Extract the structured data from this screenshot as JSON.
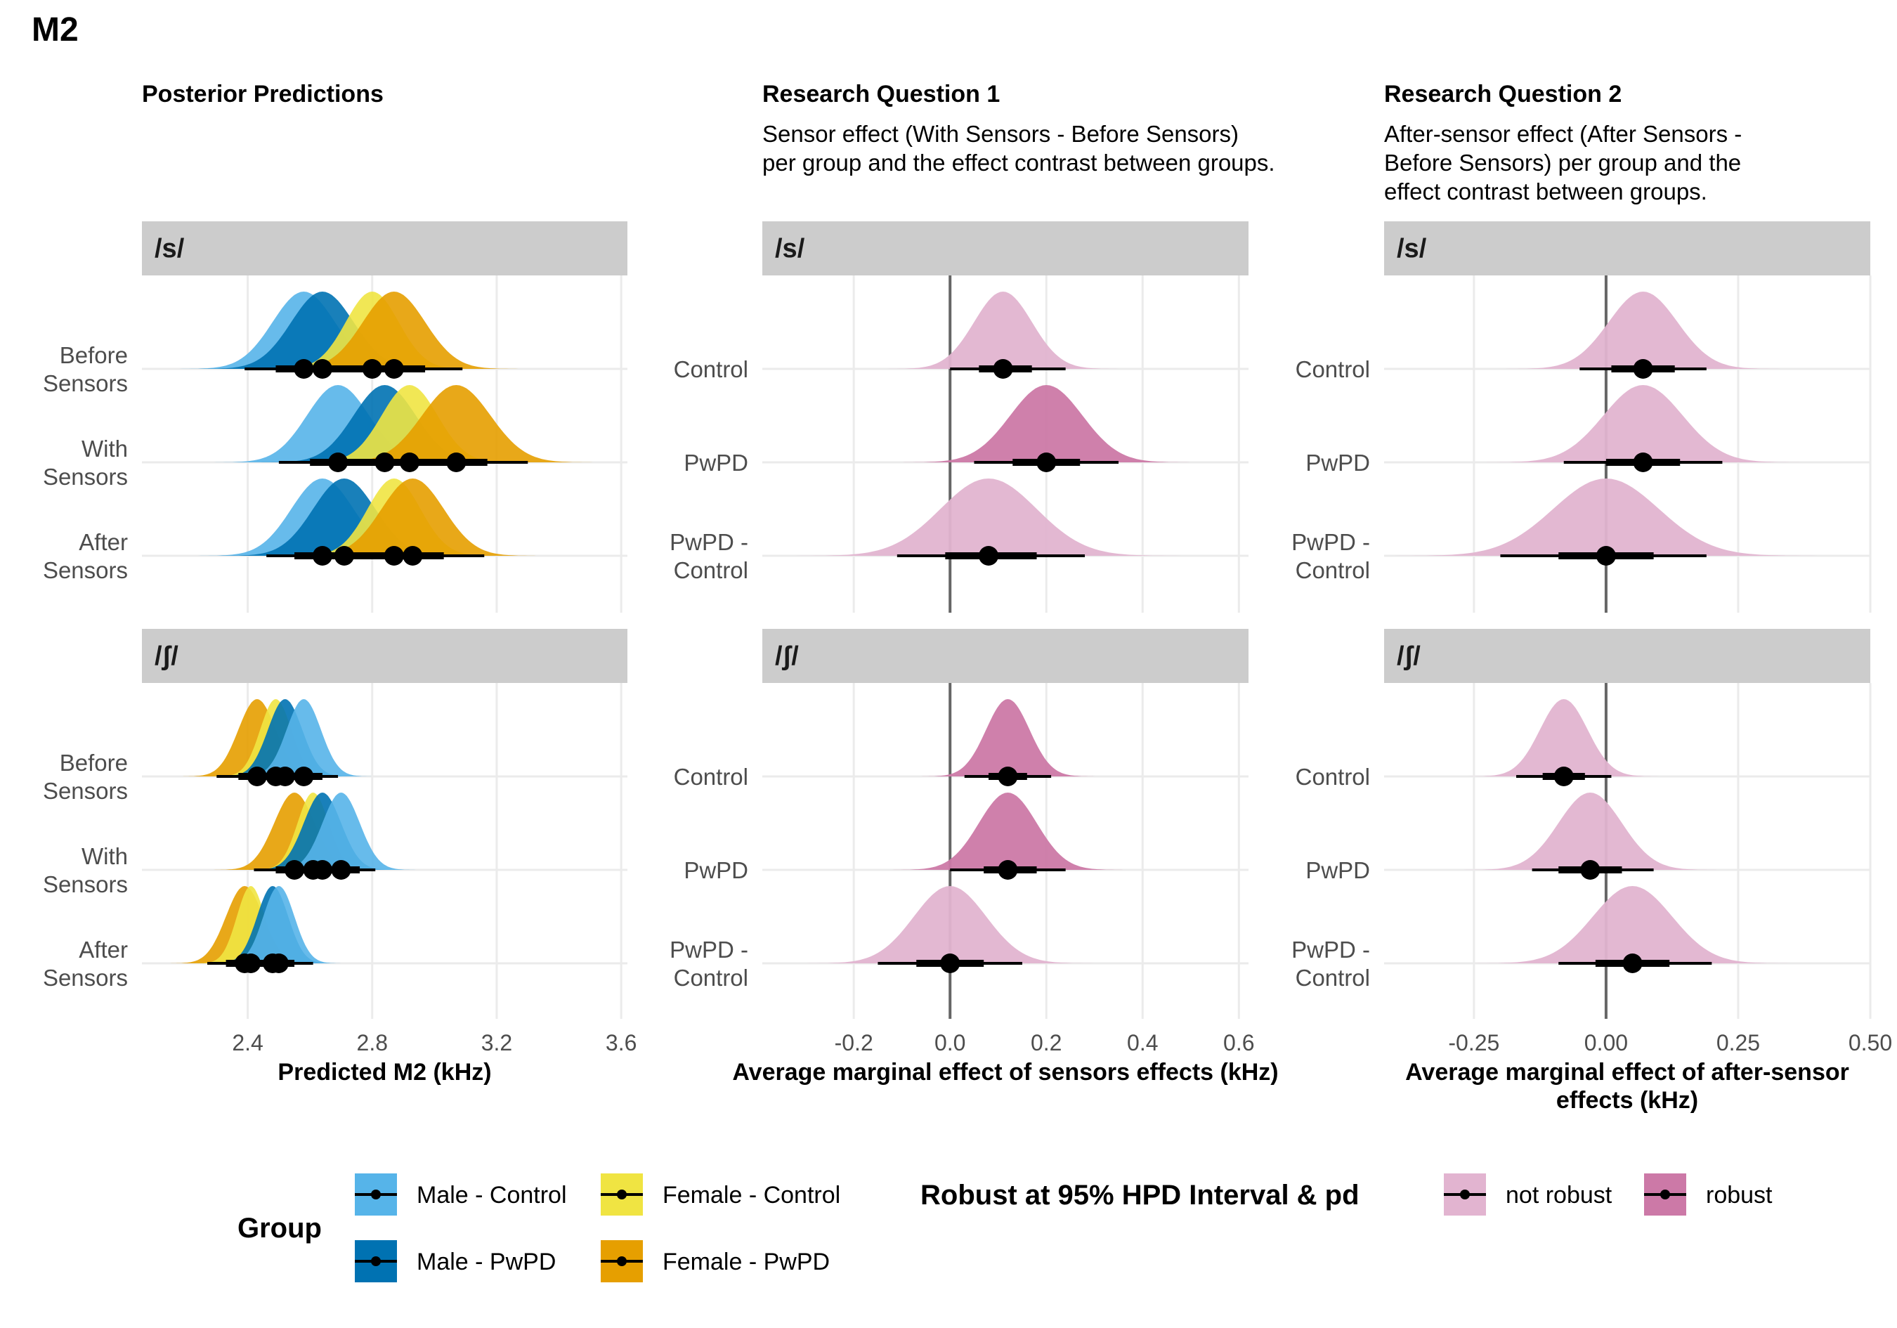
{
  "figure": {
    "title": "M2",
    "panel_titles": [
      "Posterior Predictions",
      "Research Question 1",
      "Research Question 2"
    ],
    "subtitles": [
      "",
      "Sensor effect (With Sensors - Before Sensors)\nper group and the effect contrast between groups.",
      "After-sensor effect (After Sensors -\nBefore Sensors) per group and the\neffect contrast between groups."
    ]
  },
  "colors": {
    "male_control": "#56B4E9",
    "male_pwpd": "#0072B2",
    "female_control": "#F0E442",
    "female_pwpd": "#E69F00",
    "not_robust": "#E2B4D0",
    "robust": "#CC79A7",
    "strip_bg": "#CCCCCC",
    "grid": "#EBEBEB"
  },
  "legend": {
    "group_title": "Group",
    "group_items": [
      "Male - Control",
      "Male - PwPD",
      "Female - Control",
      "Female - PwPD"
    ],
    "robust_title": "Robust at 95% HPD Interval & pd",
    "robust_items": [
      "not robust",
      "robust"
    ]
  },
  "chart_data": [
    {
      "type": "area",
      "subtype": "halfeye",
      "title": "Posterior Predictions",
      "xlabel": "Predicted M2 (kHz)",
      "xlim": [
        2.06,
        3.62
      ],
      "xticks": [
        2.4,
        2.8,
        3.2,
        3.6
      ],
      "xticklabels": [
        "2.4",
        "2.8",
        "3.2",
        "3.6"
      ],
      "facets": [
        "/s/",
        "/ʃ/"
      ],
      "rows": [
        "Before\nSensors",
        "With\nSensors",
        "After\nSensors"
      ],
      "series": [
        "Male - Control",
        "Male - PwPD",
        "Female - Control",
        "Female - PwPD"
      ],
      "data": {
        "/s/": {
          "Before\nSensors": [
            {
              "group": "Male - Control",
              "median": 2.58,
              "sd": 0.1,
              "lo66": 2.49,
              "hi66": 2.67,
              "lo95": 2.39,
              "hi95": 2.79
            },
            {
              "group": "Male - PwPD",
              "median": 2.64,
              "sd": 0.1,
              "lo66": 2.55,
              "hi66": 2.73,
              "lo95": 2.44,
              "hi95": 2.85
            },
            {
              "group": "Female - Control",
              "median": 2.8,
              "sd": 0.085,
              "lo66": 2.71,
              "hi66": 2.89,
              "lo95": 2.6,
              "hi95": 3.0
            },
            {
              "group": "Female - PwPD",
              "median": 2.87,
              "sd": 0.1,
              "lo66": 2.78,
              "hi66": 2.97,
              "lo95": 2.66,
              "hi95": 3.09
            }
          ],
          "With\nSensors": [
            {
              "group": "Male - Control",
              "median": 2.69,
              "sd": 0.1,
              "lo66": 2.6,
              "hi66": 2.79,
              "lo95": 2.5,
              "hi95": 2.9
            },
            {
              "group": "Male - PwPD",
              "median": 2.84,
              "sd": 0.1,
              "lo66": 2.75,
              "hi66": 2.94,
              "lo95": 2.63,
              "hi95": 3.04
            },
            {
              "group": "Female - Control",
              "median": 2.92,
              "sd": 0.09,
              "lo66": 2.83,
              "hi66": 3.01,
              "lo95": 2.73,
              "hi95": 3.12
            },
            {
              "group": "Female - PwPD",
              "median": 3.07,
              "sd": 0.11,
              "lo66": 2.96,
              "hi66": 3.17,
              "lo95": 2.86,
              "hi95": 3.3
            }
          ],
          "After\nSensors": [
            {
              "group": "Male - Control",
              "median": 2.64,
              "sd": 0.1,
              "lo66": 2.55,
              "hi66": 2.74,
              "lo95": 2.46,
              "hi95": 2.85
            },
            {
              "group": "Male - PwPD",
              "median": 2.71,
              "sd": 0.1,
              "lo66": 2.62,
              "hi66": 2.81,
              "lo95": 2.51,
              "hi95": 2.92
            },
            {
              "group": "Female - Control",
              "median": 2.87,
              "sd": 0.085,
              "lo66": 2.78,
              "hi66": 2.96,
              "lo95": 2.68,
              "hi95": 3.05
            },
            {
              "group": "Female - PwPD",
              "median": 2.93,
              "sd": 0.1,
              "lo66": 2.84,
              "hi66": 3.03,
              "lo95": 2.73,
              "hi95": 3.16
            }
          ]
        },
        "/ʃ/": {
          "Before\nSensors": [
            {
              "group": "Female - PwPD",
              "median": 2.43,
              "sd": 0.06,
              "lo66": 2.37,
              "hi66": 2.49,
              "lo95": 2.3,
              "hi95": 2.56
            },
            {
              "group": "Female - Control",
              "median": 2.49,
              "sd": 0.05,
              "lo66": 2.44,
              "hi66": 2.54,
              "lo95": 2.38,
              "hi95": 2.6
            },
            {
              "group": "Male - PwPD",
              "median": 2.52,
              "sd": 0.055,
              "lo66": 2.46,
              "hi66": 2.58,
              "lo95": 2.41,
              "hi95": 2.63
            },
            {
              "group": "Male - Control",
              "median": 2.58,
              "sd": 0.055,
              "lo66": 2.52,
              "hi66": 2.64,
              "lo95": 2.47,
              "hi95": 2.69
            }
          ],
          "With\nSensors": [
            {
              "group": "Female - PwPD",
              "median": 2.55,
              "sd": 0.065,
              "lo66": 2.49,
              "hi66": 2.62,
              "lo95": 2.42,
              "hi95": 2.68
            },
            {
              "group": "Female - Control",
              "median": 2.61,
              "sd": 0.05,
              "lo66": 2.56,
              "hi66": 2.66,
              "lo95": 2.51,
              "hi95": 2.71
            },
            {
              "group": "Male - PwPD",
              "median": 2.64,
              "sd": 0.06,
              "lo66": 2.58,
              "hi66": 2.7,
              "lo95": 2.52,
              "hi95": 2.76
            },
            {
              "group": "Male - Control",
              "median": 2.7,
              "sd": 0.06,
              "lo66": 2.64,
              "hi66": 2.76,
              "lo95": 2.58,
              "hi95": 2.81
            }
          ],
          "After\nSensors": [
            {
              "group": "Female - PwPD",
              "median": 2.39,
              "sd": 0.06,
              "lo66": 2.33,
              "hi66": 2.45,
              "lo95": 2.27,
              "hi95": 2.51
            },
            {
              "group": "Female - Control",
              "median": 2.41,
              "sd": 0.045,
              "lo66": 2.36,
              "hi66": 2.46,
              "lo95": 2.32,
              "hi95": 2.5
            },
            {
              "group": "Male - PwPD",
              "median": 2.48,
              "sd": 0.05,
              "lo66": 2.43,
              "hi66": 2.53,
              "lo95": 2.38,
              "hi95": 2.58
            },
            {
              "group": "Male - Control",
              "median": 2.5,
              "sd": 0.05,
              "lo66": 2.45,
              "hi66": 2.55,
              "lo95": 2.4,
              "hi95": 2.61
            }
          ]
        }
      }
    },
    {
      "type": "area",
      "subtype": "halfeye",
      "title": "Research Question 1",
      "xlabel": "Average marginal effect of sensors effects (kHz)",
      "xlim": [
        -0.39,
        0.62
      ],
      "xticks": [
        -0.2,
        0.0,
        0.2,
        0.4,
        0.6
      ],
      "xticklabels": [
        "-0.2",
        "0.0",
        "0.2",
        "0.4",
        "0.6"
      ],
      "refline": 0,
      "facets": [
        "/s/",
        "/ʃ/"
      ],
      "rows": [
        "Control",
        "PwPD",
        "PwPD -\nControl"
      ],
      "data": {
        "/s/": {
          "Control": {
            "median": 0.11,
            "sd": 0.06,
            "lo66": 0.06,
            "hi66": 0.17,
            "lo95": 0.0,
            "hi95": 0.24,
            "robust": false
          },
          "PwPD": {
            "median": 0.2,
            "sd": 0.075,
            "lo66": 0.13,
            "hi66": 0.27,
            "lo95": 0.05,
            "hi95": 0.35,
            "robust": true
          },
          "PwPD -\nControl": {
            "median": 0.08,
            "sd": 0.1,
            "lo66": -0.01,
            "hi66": 0.18,
            "lo95": -0.11,
            "hi95": 0.28,
            "robust": false
          }
        },
        "/ʃ/": {
          "Control": {
            "median": 0.12,
            "sd": 0.045,
            "lo66": 0.08,
            "hi66": 0.16,
            "lo95": 0.03,
            "hi95": 0.21,
            "robust": true
          },
          "PwPD": {
            "median": 0.12,
            "sd": 0.06,
            "lo66": 0.07,
            "hi66": 0.18,
            "lo95": 0.0,
            "hi95": 0.24,
            "robust": true
          },
          "PwPD -\nControl": {
            "median": 0.0,
            "sd": 0.075,
            "lo66": -0.07,
            "hi66": 0.07,
            "lo95": -0.15,
            "hi95": 0.15,
            "robust": false
          }
        }
      }
    },
    {
      "type": "area",
      "subtype": "halfeye",
      "title": "Research Question 2",
      "xlabel": "Average marginal effect of after-sensor\neffects (kHz)",
      "xlim": [
        -0.42,
        0.5
      ],
      "xticks": [
        -0.25,
        0.0,
        0.25,
        0.5
      ],
      "xticklabels": [
        "-0.25",
        "0.00",
        "0.25",
        "0.50"
      ],
      "refline": 0,
      "facets": [
        "/s/",
        "/ʃ/"
      ],
      "rows": [
        "Control",
        "PwPD",
        "PwPD -\nControl"
      ],
      "data": {
        "/s/": {
          "Control": {
            "median": 0.07,
            "sd": 0.065,
            "lo66": 0.01,
            "hi66": 0.13,
            "lo95": -0.05,
            "hi95": 0.19,
            "robust": false
          },
          "PwPD": {
            "median": 0.07,
            "sd": 0.075,
            "lo66": 0.0,
            "hi66": 0.14,
            "lo95": -0.08,
            "hi95": 0.22,
            "robust": false
          },
          "PwPD -\nControl": {
            "median": 0.0,
            "sd": 0.1,
            "lo66": -0.09,
            "hi66": 0.09,
            "lo95": -0.2,
            "hi95": 0.19,
            "robust": false
          }
        },
        "/ʃ/": {
          "Control": {
            "median": -0.08,
            "sd": 0.045,
            "lo66": -0.12,
            "hi66": -0.04,
            "lo95": -0.17,
            "hi95": 0.01,
            "robust": false
          },
          "PwPD": {
            "median": -0.03,
            "sd": 0.06,
            "lo66": -0.09,
            "hi66": 0.03,
            "lo95": -0.14,
            "hi95": 0.09,
            "robust": false
          },
          "PwPD -\nControl": {
            "median": 0.05,
            "sd": 0.075,
            "lo66": -0.02,
            "hi66": 0.12,
            "lo95": -0.09,
            "hi95": 0.2,
            "robust": false
          }
        }
      }
    }
  ]
}
